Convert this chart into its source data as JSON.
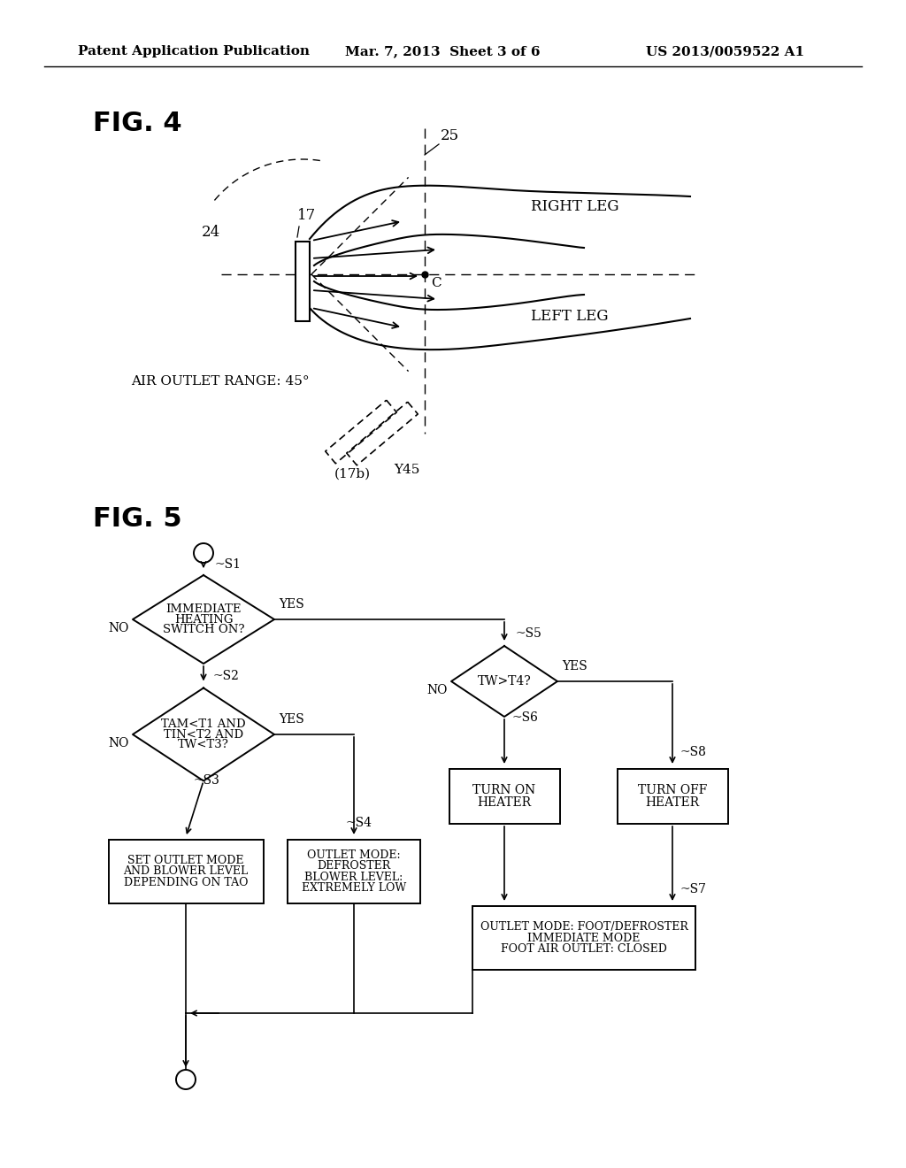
{
  "header_left": "Patent Application Publication",
  "header_mid": "Mar. 7, 2013  Sheet 3 of 6",
  "header_right": "US 2013/0059522 A1",
  "fig4_label": "FIG. 4",
  "fig5_label": "FIG. 5",
  "bg_color": "#ffffff",
  "text_color": "#000000",
  "line_color": "#000000"
}
